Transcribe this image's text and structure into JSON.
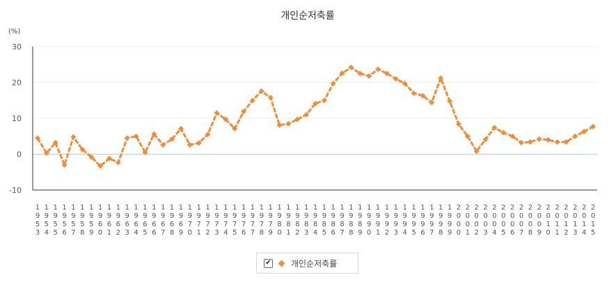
{
  "chart_data": {
    "type": "line",
    "title": "개인순저축률",
    "ylabel": "(%)",
    "xlabel": "",
    "ylim": [
      -10,
      30
    ],
    "yticks": [
      30,
      20,
      10,
      0,
      -10
    ],
    "grid": true,
    "legend_position": "bottom",
    "color": "#f08c3a",
    "categories": [
      "1953",
      "1954",
      "1955",
      "1956",
      "1957",
      "1958",
      "1959",
      "1960",
      "1961",
      "1962",
      "1963",
      "1964",
      "1965",
      "1966",
      "1967",
      "1968",
      "1969",
      "1970",
      "1971",
      "1972",
      "1973",
      "1974",
      "1975",
      "1976",
      "1977",
      "1978",
      "1979",
      "1980",
      "1981",
      "1982",
      "1983",
      "1984",
      "1985",
      "1986",
      "1987",
      "1988",
      "1989",
      "1990",
      "1991",
      "1992",
      "1993",
      "1994",
      "1995",
      "1996",
      "1997",
      "1998",
      "1999",
      "2000",
      "2001",
      "2002",
      "2003",
      "2004",
      "2005",
      "2006",
      "2007",
      "2008",
      "2009",
      "2010",
      "2011",
      "2012",
      "2013",
      "2014",
      "2015"
    ],
    "series": [
      {
        "name": "개인순저축률",
        "values": [
          4.5,
          0.3,
          3.2,
          -3.0,
          4.8,
          1.3,
          -0.8,
          -3.3,
          -1.2,
          -2.3,
          4.5,
          5.0,
          0.5,
          5.6,
          2.6,
          4.2,
          7.1,
          2.6,
          3.1,
          5.5,
          11.5,
          9.7,
          7.1,
          11.9,
          15.0,
          17.6,
          15.8,
          8.1,
          8.5,
          9.7,
          11.0,
          14.1,
          15.0,
          19.7,
          22.6,
          24.2,
          22.5,
          21.8,
          23.7,
          22.5,
          21.0,
          19.7,
          17.0,
          16.3,
          14.4,
          21.2,
          14.8,
          8.4,
          5.0,
          0.8,
          4.1,
          7.4,
          6.0,
          5.0,
          3.2,
          3.4,
          4.2,
          4.0,
          3.4,
          3.4,
          5.0,
          6.3,
          7.7
        ]
      }
    ]
  },
  "legend": {
    "check_symbol": "✔",
    "label": "개인순저축률"
  }
}
